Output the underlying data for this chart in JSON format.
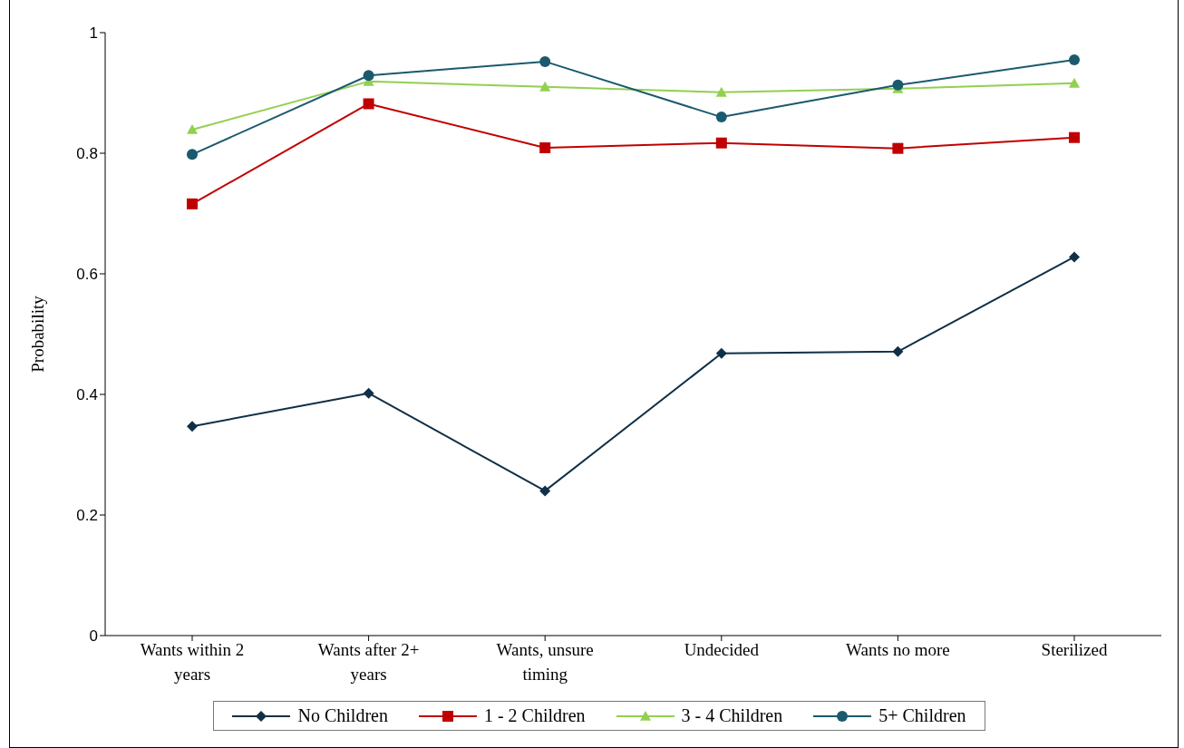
{
  "chart_data": {
    "type": "line",
    "ylabel": "Probability",
    "categories": [
      "Wants within 2 years",
      "Wants after 2+ years",
      "Wants, unsure timing",
      "Undecided",
      "Wants no more",
      "Sterilized"
    ],
    "series": [
      {
        "name": "No Children",
        "color": "#0f3046",
        "marker": "diamond",
        "values": [
          0.347,
          0.402,
          0.24,
          0.468,
          0.471,
          0.628
        ]
      },
      {
        "name": "1 - 2 Children",
        "color": "#c00000",
        "marker": "square",
        "values": [
          0.716,
          0.882,
          0.809,
          0.817,
          0.808,
          0.826
        ]
      },
      {
        "name": "3 - 4 Children",
        "color": "#92d050",
        "marker": "triangle",
        "values": [
          0.839,
          0.919,
          0.91,
          0.901,
          0.907,
          0.916
        ]
      },
      {
        "name": "5+ Children",
        "color": "#1b5a6e",
        "marker": "circle",
        "values": [
          0.798,
          0.929,
          0.952,
          0.86,
          0.913,
          0.955
        ]
      }
    ],
    "ylim": [
      0,
      1
    ],
    "yticks": [
      0,
      0.2,
      0.4,
      0.6,
      0.8,
      1
    ],
    "grid": false,
    "legend": "bottom",
    "line_style": "solid"
  }
}
